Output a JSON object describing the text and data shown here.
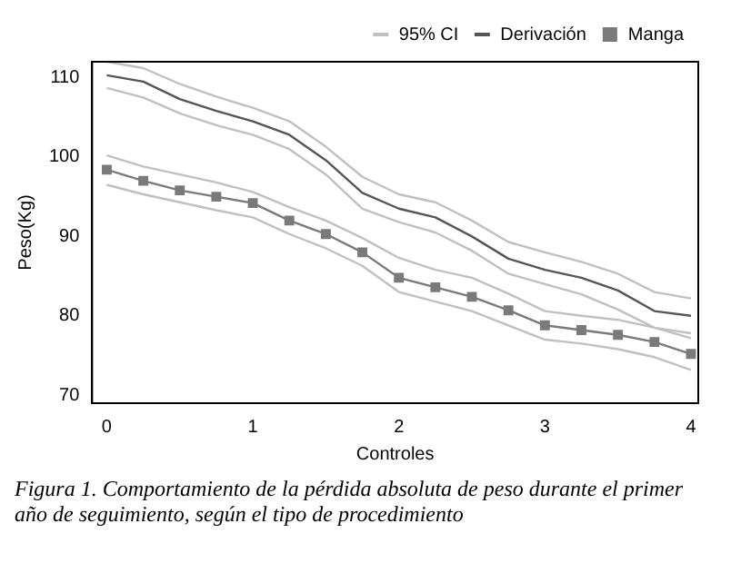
{
  "chart_data": {
    "type": "line",
    "title": "Figura 1. Comportamiento de la pérdida absoluta de peso durante el primer año de seguimiento, según el tipo de procedimiento",
    "xlabel": "Controles",
    "ylabel": "Peso(Kg)",
    "x": [
      0,
      0.25,
      0.5,
      0.75,
      1,
      1.25,
      1.5,
      1.75,
      2,
      2.25,
      2.5,
      2.75,
      3,
      3.25,
      3.5,
      3.75,
      4
    ],
    "xlim": [
      -0.1,
      4.05
    ],
    "xticks": [
      0,
      1,
      2,
      3,
      4
    ],
    "ylim": [
      69,
      112
    ],
    "yticks": [
      70,
      80,
      90,
      100,
      110
    ],
    "grid": false,
    "legend": "top right",
    "series": [
      {
        "name": "95% CI",
        "color": "#c0c0c0",
        "marker": "none",
        "values": [
          112.0,
          111.2,
          109.2,
          107.6,
          106.2,
          104.5,
          101.3,
          97.5,
          95.3,
          94.3,
          92.0,
          89.3,
          88.0,
          86.8,
          85.3,
          83.0,
          82.2
        ]
      },
      {
        "color": "#c0c0c0",
        "marker": "none",
        "values": [
          108.7,
          107.5,
          105.5,
          104.0,
          102.8,
          101.0,
          97.8,
          93.5,
          91.8,
          90.5,
          88.2,
          85.3,
          84.0,
          82.7,
          80.8,
          78.5,
          77.8
        ]
      },
      {
        "color": "#c0c0c0",
        "marker": "none",
        "values": [
          100.2,
          98.8,
          97.8,
          96.8,
          95.6,
          93.7,
          92.0,
          89.8,
          87.3,
          85.8,
          84.8,
          82.8,
          80.6,
          80.0,
          79.5,
          78.5,
          77.2
        ]
      },
      {
        "color": "#c0c0c0",
        "marker": "none",
        "values": [
          96.5,
          95.3,
          94.3,
          93.3,
          92.4,
          90.3,
          88.5,
          86.3,
          83.0,
          81.8,
          80.6,
          78.8,
          77.0,
          76.5,
          75.8,
          74.8,
          73.2
        ]
      },
      {
        "name": "Derivación",
        "color": "#555555",
        "marker": "none",
        "values": [
          110.3,
          109.5,
          107.3,
          105.8,
          104.5,
          102.8,
          99.6,
          95.5,
          93.5,
          92.4,
          90.0,
          87.2,
          85.8,
          84.8,
          83.2,
          80.6,
          80.0
        ]
      },
      {
        "name": "Manga",
        "color": "#7a7a7a",
        "marker": "square",
        "values": [
          98.4,
          97.0,
          95.8,
          95.0,
          94.2,
          92.0,
          90.3,
          88.0,
          84.8,
          83.6,
          82.4,
          80.7,
          78.8,
          78.2,
          77.6,
          76.7,
          75.2
        ]
      }
    ]
  }
}
